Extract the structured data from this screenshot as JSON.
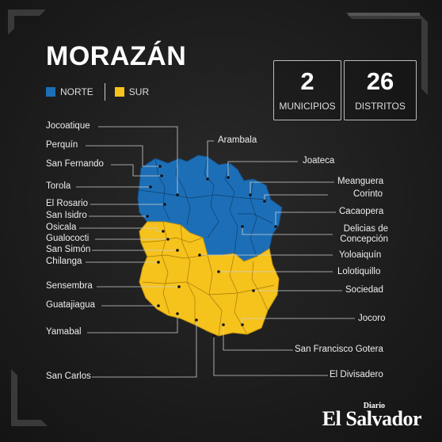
{
  "title": "MORAZÁN",
  "legend": {
    "norte": {
      "label": "NORTE",
      "color": "#1c6fb7"
    },
    "sur": {
      "label": "SUR",
      "color": "#f6c21c"
    }
  },
  "stats": {
    "municipios": {
      "value": "2",
      "label": "MUNICIPIOS"
    },
    "distritos": {
      "value": "26",
      "label": "DISTRITOS"
    }
  },
  "districts_left": [
    "Jocoatique",
    "Perquín",
    "San Fernando",
    "Torola",
    "El Rosario",
    "San Isidro",
    "Osicala",
    "Gualococti",
    "San Simón",
    "Chilanga",
    "Sensembra",
    "Guatajiagua",
    "Yamabal",
    "San Carlos"
  ],
  "districts_right": [
    "Arambala",
    "Joateca",
    "Meanguera",
    "Corinto",
    "Cacaopera",
    "Delicias de Concepción",
    "Yoloaiquín",
    "Lolotiquillo",
    "Sociedad",
    "Jocoro",
    "San Francisco Gotera",
    "El Divisadero"
  ],
  "brand": {
    "top": "Diario",
    "name": "El Salvador"
  }
}
